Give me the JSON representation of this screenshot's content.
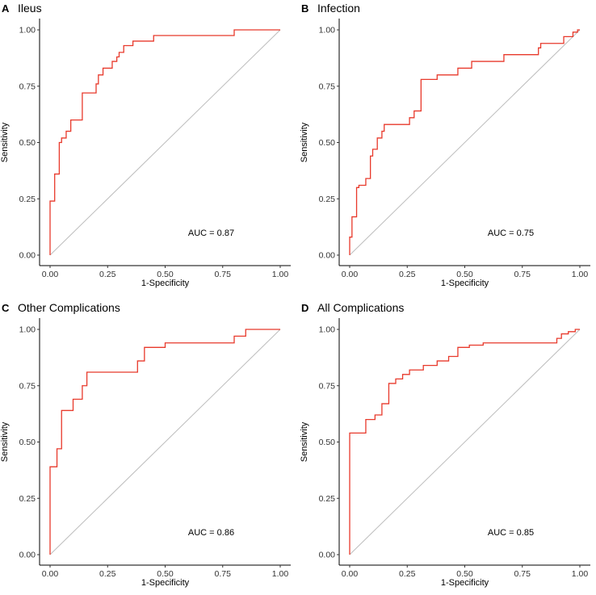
{
  "chart_data": [
    {
      "type": "line",
      "panel": "A",
      "title": "Ileus",
      "xlabel": "1-Specificity",
      "ylabel": "Sensitivity",
      "xlim": [
        0,
        1
      ],
      "ylim": [
        0,
        1
      ],
      "xticks": [
        "0.00",
        "0.25",
        "0.50",
        "0.75",
        "1.00"
      ],
      "yticks": [
        "0.00",
        "0.25",
        "0.50",
        "0.75",
        "1.00"
      ],
      "auc_label": "AUC = 0.87",
      "series": [
        {
          "name": "ROC",
          "color": "#e8392b",
          "x": [
            0,
            0,
            0.02,
            0.02,
            0.04,
            0.04,
            0.05,
            0.05,
            0.07,
            0.07,
            0.09,
            0.09,
            0.11,
            0.11,
            0.14,
            0.14,
            0.2,
            0.2,
            0.21,
            0.21,
            0.23,
            0.23,
            0.25,
            0.25,
            0.27,
            0.27,
            0.29,
            0.29,
            0.3,
            0.3,
            0.32,
            0.32,
            0.36,
            0.36,
            0.45,
            0.45,
            0.8,
            0.8,
            1.0
          ],
          "y": [
            0,
            0.24,
            0.24,
            0.36,
            0.36,
            0.5,
            0.5,
            0.52,
            0.52,
            0.55,
            0.55,
            0.6,
            0.6,
            0.6,
            0.6,
            0.72,
            0.72,
            0.76,
            0.76,
            0.8,
            0.8,
            0.83,
            0.83,
            0.83,
            0.83,
            0.86,
            0.86,
            0.88,
            0.88,
            0.9,
            0.9,
            0.93,
            0.93,
            0.95,
            0.95,
            0.975,
            0.975,
            1.0,
            1.0
          ]
        },
        {
          "name": "Reference",
          "color": "#bdbdbd",
          "x": [
            0,
            1
          ],
          "y": [
            0,
            1
          ]
        }
      ]
    },
    {
      "type": "line",
      "panel": "B",
      "title": "Infection",
      "xlabel": "1-Specificity",
      "ylabel": "Sensitivity",
      "xlim": [
        0,
        1
      ],
      "ylim": [
        0,
        1
      ],
      "xticks": [
        "0.00",
        "0.25",
        "0.50",
        "0.75",
        "1.00"
      ],
      "yticks": [
        "0.00",
        "0.25",
        "0.50",
        "0.75",
        "1.00"
      ],
      "auc_label": "AUC = 0.75",
      "series": [
        {
          "name": "ROC",
          "color": "#e8392b",
          "x": [
            0,
            0,
            0.01,
            0.01,
            0.03,
            0.03,
            0.04,
            0.04,
            0.07,
            0.07,
            0.09,
            0.09,
            0.1,
            0.1,
            0.12,
            0.12,
            0.14,
            0.14,
            0.15,
            0.15,
            0.26,
            0.26,
            0.28,
            0.28,
            0.31,
            0.31,
            0.38,
            0.38,
            0.47,
            0.47,
            0.53,
            0.53,
            0.67,
            0.67,
            0.82,
            0.82,
            0.83,
            0.83,
            0.93,
            0.93,
            0.97,
            0.97,
            0.99,
            0.99,
            1.0
          ],
          "y": [
            0,
            0.08,
            0.08,
            0.17,
            0.17,
            0.3,
            0.3,
            0.31,
            0.31,
            0.34,
            0.34,
            0.44,
            0.44,
            0.47,
            0.47,
            0.52,
            0.52,
            0.55,
            0.55,
            0.58,
            0.58,
            0.61,
            0.61,
            0.64,
            0.64,
            0.78,
            0.78,
            0.8,
            0.8,
            0.83,
            0.83,
            0.86,
            0.86,
            0.89,
            0.89,
            0.92,
            0.92,
            0.94,
            0.94,
            0.97,
            0.97,
            0.99,
            0.99,
            1.0,
            1.0
          ]
        },
        {
          "name": "Reference",
          "color": "#bdbdbd",
          "x": [
            0,
            1
          ],
          "y": [
            0,
            1
          ]
        }
      ]
    },
    {
      "type": "line",
      "panel": "C",
      "title": "Other Complications",
      "xlabel": "1-Specificity",
      "ylabel": "Sensitivity",
      "xlim": [
        0,
        1
      ],
      "ylim": [
        0,
        1
      ],
      "xticks": [
        "0.00",
        "0.25",
        "0.50",
        "0.75",
        "1.00"
      ],
      "yticks": [
        "0.00",
        "0.25",
        "0.50",
        "0.75",
        "1.00"
      ],
      "auc_label": "AUC = 0.86",
      "series": [
        {
          "name": "ROC",
          "color": "#e8392b",
          "x": [
            0,
            0,
            0.03,
            0.03,
            0.05,
            0.05,
            0.1,
            0.1,
            0.14,
            0.14,
            0.16,
            0.16,
            0.38,
            0.38,
            0.41,
            0.41,
            0.5,
            0.5,
            0.8,
            0.8,
            0.85,
            0.85,
            1.0
          ],
          "y": [
            0,
            0.39,
            0.39,
            0.47,
            0.47,
            0.64,
            0.64,
            0.69,
            0.69,
            0.75,
            0.75,
            0.81,
            0.81,
            0.86,
            0.86,
            0.92,
            0.92,
            0.94,
            0.94,
            0.97,
            0.97,
            1.0,
            1.0
          ]
        },
        {
          "name": "Reference",
          "color": "#bdbdbd",
          "x": [
            0,
            1
          ],
          "y": [
            0,
            1
          ]
        }
      ]
    },
    {
      "type": "line",
      "panel": "D",
      "title": "All Complications",
      "xlabel": "1-Specificity",
      "ylabel": "Sensitivity",
      "xlim": [
        0,
        1
      ],
      "ylim": [
        0,
        1
      ],
      "xticks": [
        "0.00",
        "0.25",
        "0.50",
        "0.75",
        "1.00"
      ],
      "yticks": [
        "0.00",
        "0.25",
        "0.50",
        "0.75",
        "1.00"
      ],
      "auc_label": "AUC = 0.85",
      "series": [
        {
          "name": "ROC",
          "color": "#e8392b",
          "x": [
            0,
            0,
            0.07,
            0.07,
            0.11,
            0.11,
            0.14,
            0.14,
            0.17,
            0.17,
            0.2,
            0.2,
            0.23,
            0.23,
            0.26,
            0.26,
            0.32,
            0.32,
            0.38,
            0.38,
            0.43,
            0.43,
            0.47,
            0.47,
            0.52,
            0.52,
            0.58,
            0.58,
            0.9,
            0.9,
            0.92,
            0.92,
            0.95,
            0.95,
            0.98,
            0.98,
            1.0
          ],
          "y": [
            0,
            0.54,
            0.54,
            0.6,
            0.6,
            0.62,
            0.62,
            0.67,
            0.67,
            0.76,
            0.76,
            0.78,
            0.78,
            0.8,
            0.8,
            0.82,
            0.82,
            0.84,
            0.84,
            0.86,
            0.86,
            0.88,
            0.88,
            0.92,
            0.92,
            0.93,
            0.93,
            0.94,
            0.94,
            0.96,
            0.96,
            0.98,
            0.98,
            0.99,
            0.99,
            1.0,
            1.0
          ]
        },
        {
          "name": "Reference",
          "color": "#bdbdbd",
          "x": [
            0,
            1
          ],
          "y": [
            0,
            1
          ]
        }
      ]
    }
  ]
}
